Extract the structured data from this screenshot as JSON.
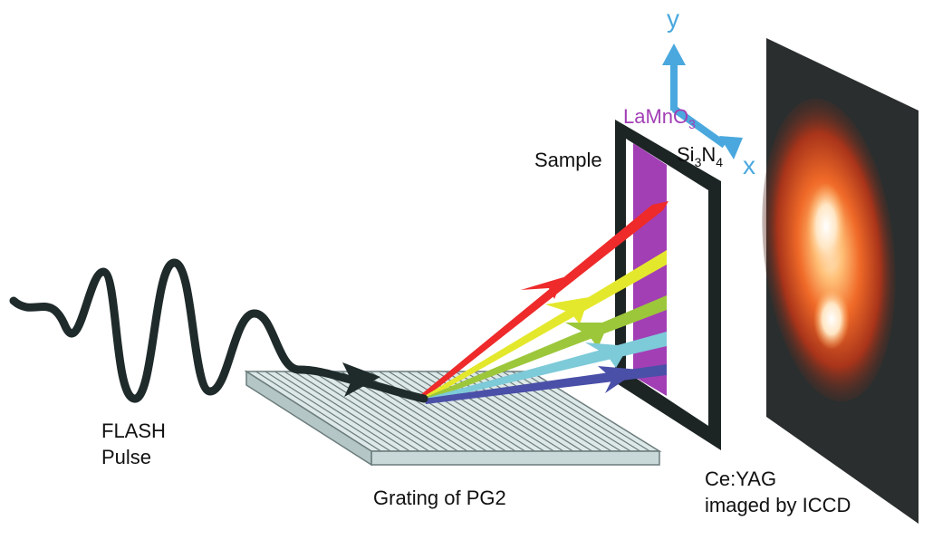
{
  "labels": {
    "pulse_line1": "FLASH",
    "pulse_line2": "Pulse",
    "grating": "Grating of PG2",
    "sample": "Sample",
    "film_base": "LaMnO",
    "film_sub": "3",
    "membrane_si": "Si",
    "membrane_si_sub": "3",
    "membrane_n": "N",
    "membrane_n_sub": "4",
    "detector_line1": "Ce:YAG",
    "detector_line2": "imaged by ICCD",
    "axis_y": "y",
    "axis_x": "x"
  },
  "colors": {
    "pulse": "#1f2a2a",
    "grating_top": "#dde8e8",
    "grating_side": "#c9d8d8",
    "grating_line": "#6b7b7b",
    "frame": "#1c2424",
    "film": "#a23fb5",
    "axis": "#4aa8de",
    "film_label": "#a23fb5",
    "beam_red": "#ee2a2a",
    "beam_yellow": "#e4e82c",
    "beam_green": "#9cc73a",
    "beam_cyan": "#7dcad8",
    "beam_blue": "#4a4fa8"
  }
}
